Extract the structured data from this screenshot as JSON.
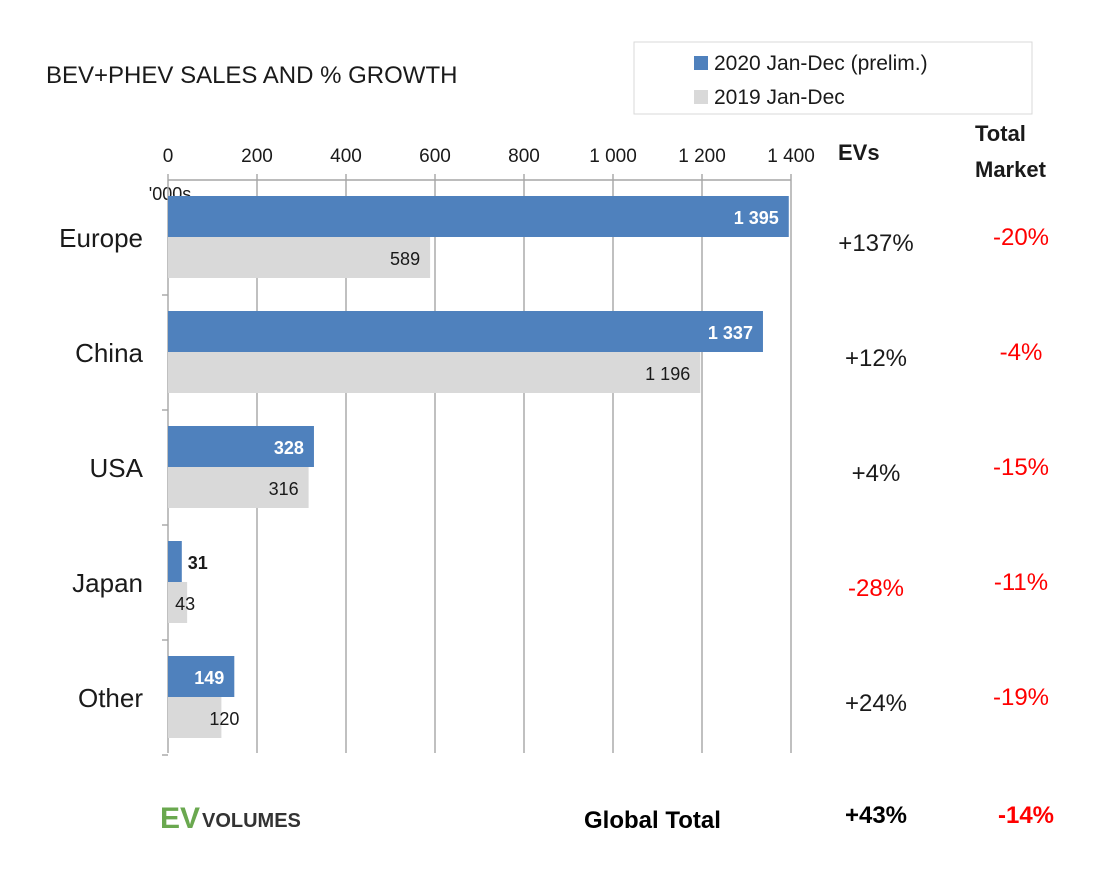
{
  "colors": {
    "series_2020": "#4f81bd",
    "series_2019": "#d9d9d9",
    "negative": "#ff0000",
    "neutral": "#1a1a1a",
    "grid": "#a6a6a6",
    "logo_green": "#6aa84f"
  },
  "chart_data": {
    "type": "bar",
    "orientation": "horizontal",
    "title": "BEV+PHEV SALES AND % GROWTH",
    "unit_label": "'000s",
    "categories": [
      "Europe",
      "China",
      "USA",
      "Japan",
      "Other"
    ],
    "series": [
      {
        "name": "2020 Jan-Dec (prelim.)",
        "values": [
          1395,
          1337,
          328,
          31,
          149
        ],
        "labels": [
          "1 395",
          "1 337",
          "328",
          "31",
          "149"
        ]
      },
      {
        "name": "2019 Jan-Dec",
        "values": [
          589,
          1196,
          316,
          43,
          120
        ],
        "labels": [
          "589",
          "1 196",
          "316",
          "43",
          "120"
        ]
      }
    ],
    "xlim": [
      0,
      1400
    ],
    "xticks": [
      0,
      200,
      400,
      600,
      800,
      1000,
      1200,
      1400
    ],
    "xtick_labels": [
      "0",
      "200",
      "400",
      "600",
      "800",
      "1 000",
      "1 200",
      "1 400"
    ],
    "grid": "vertical",
    "legend_position": "top-right",
    "columns": {
      "evs_header": "EVs",
      "market_header_line1": "Total",
      "market_header_line2": "Market"
    },
    "growth": [
      {
        "evs": "+137%",
        "evs_negative": false,
        "market": "-20%"
      },
      {
        "evs": "+12%",
        "evs_negative": false,
        "market": "-4%"
      },
      {
        "evs": "+4%",
        "evs_negative": false,
        "market": "-15%"
      },
      {
        "evs": "-28%",
        "evs_negative": true,
        "market": "-11%"
      },
      {
        "evs": "+24%",
        "evs_negative": false,
        "market": "-19%"
      }
    ],
    "global_total": {
      "label": "Global Total",
      "evs": "+43%",
      "market": "-14%"
    }
  },
  "logo": {
    "ev": "EV",
    "volumes": "VOLUMES"
  }
}
